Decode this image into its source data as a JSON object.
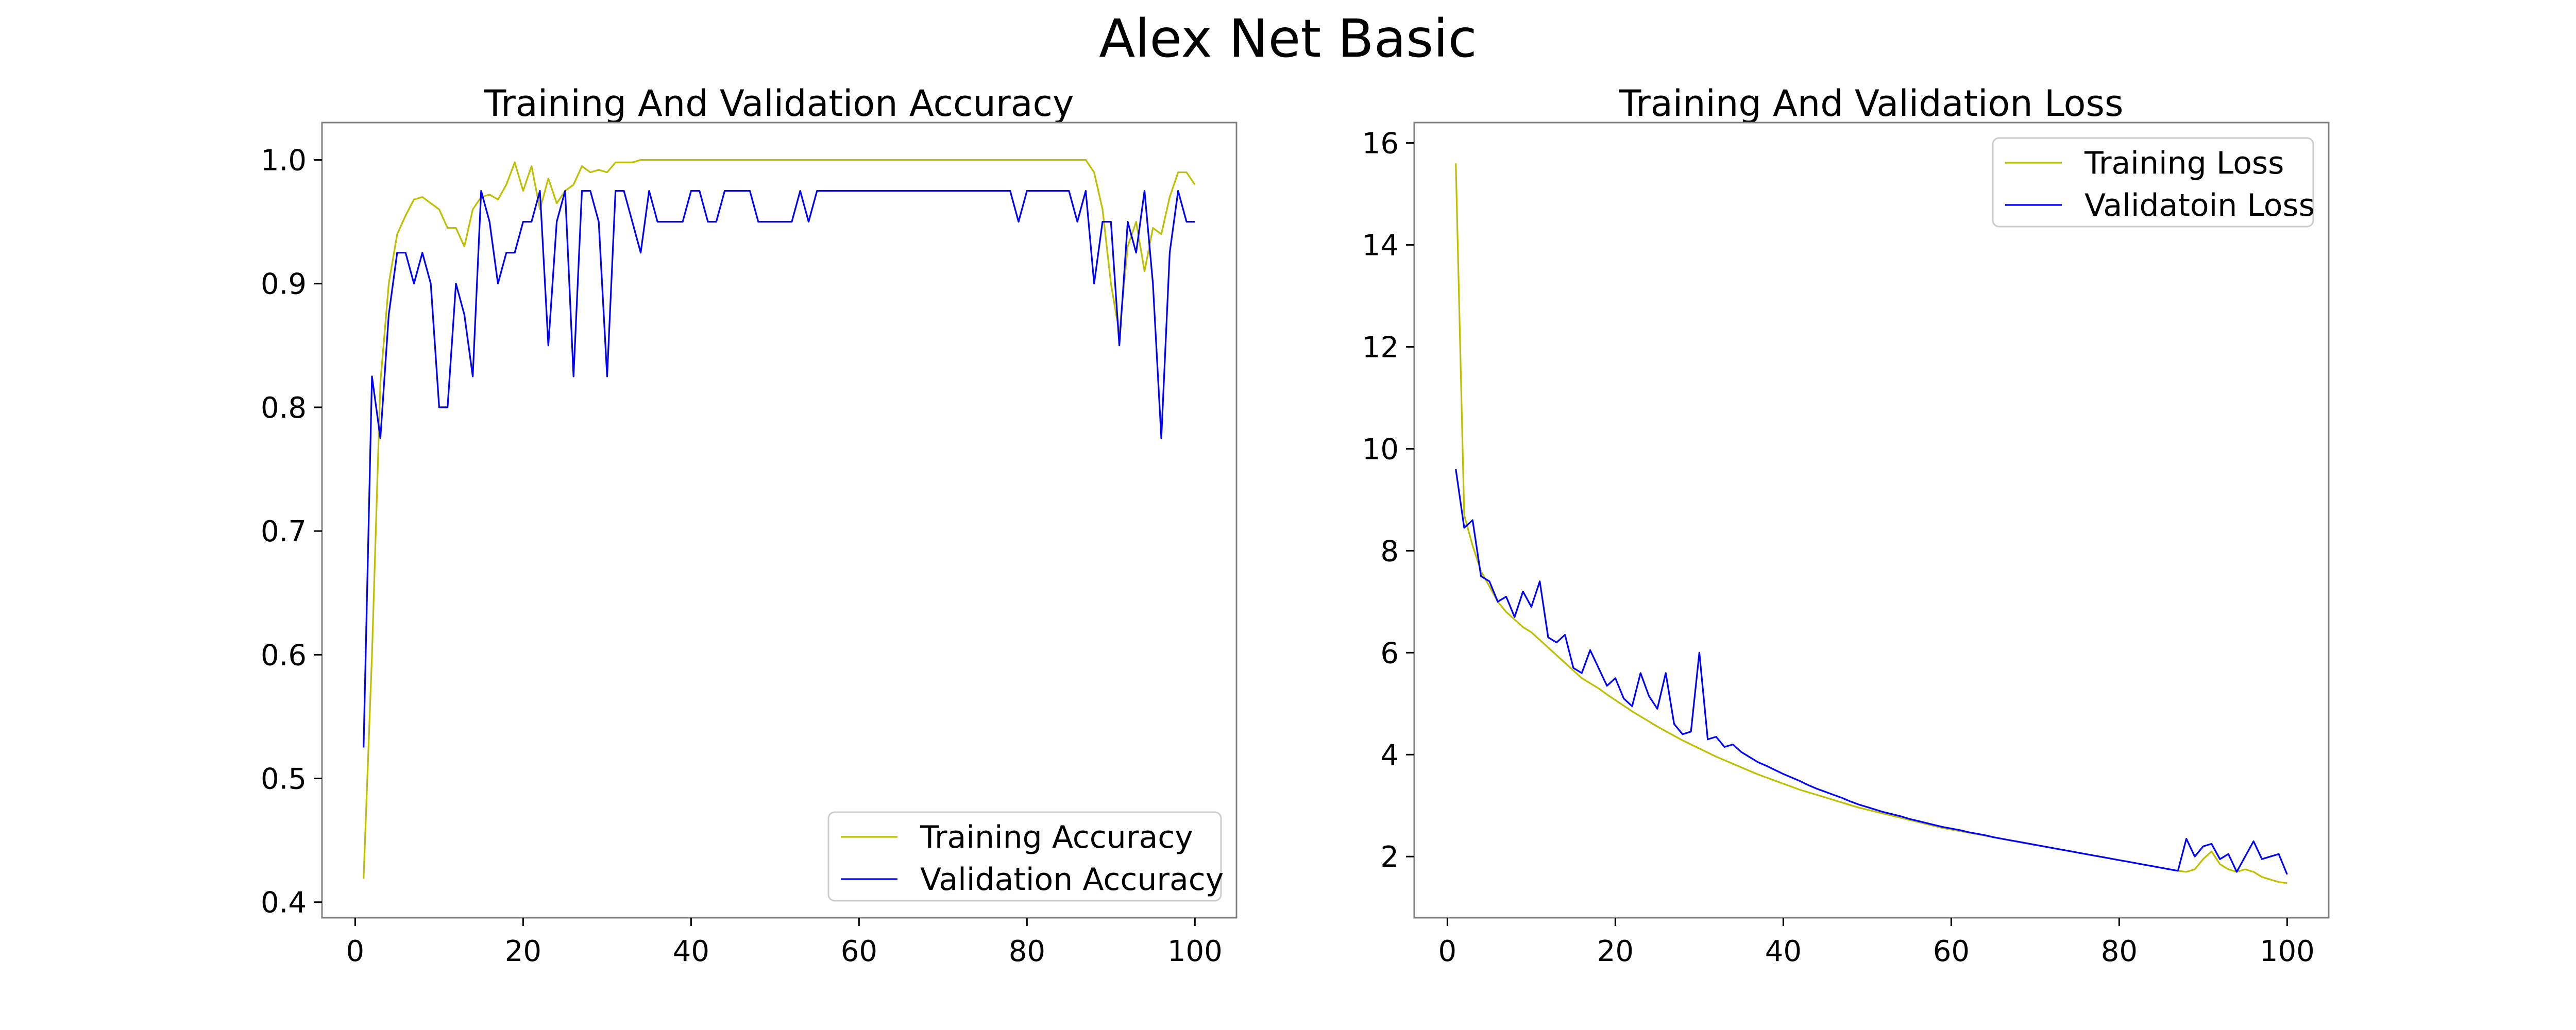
{
  "figure": {
    "suptitle": "Alex Net Basic"
  },
  "chart_data": [
    {
      "type": "line",
      "title": "Training And Validation Accuracy",
      "xlabel": "",
      "ylabel": "",
      "xlim": [
        -3.95,
        104.95
      ],
      "ylim": [
        0.3874,
        1.0302
      ],
      "xticks": [
        0,
        20,
        40,
        60,
        80,
        100
      ],
      "yticks": [
        0.4,
        0.5,
        0.6,
        0.7,
        0.8,
        0.9,
        1.0
      ],
      "ytick_labels": [
        "0.4",
        "0.5",
        "0.6",
        "0.7",
        "0.8",
        "0.9",
        "1.0"
      ],
      "legend_position": "lower-right",
      "grid": false,
      "series": [
        {
          "name": "Training Accuracy",
          "color": "#bfbf00",
          "x": [
            1,
            2,
            3,
            4,
            5,
            6,
            7,
            8,
            9,
            10,
            11,
            12,
            13,
            14,
            15,
            16,
            17,
            18,
            19,
            20,
            21,
            22,
            23,
            24,
            25,
            26,
            27,
            28,
            29,
            30,
            31,
            32,
            33,
            34,
            35,
            36,
            37,
            38,
            39,
            40,
            41,
            42,
            43,
            44,
            45,
            46,
            47,
            48,
            49,
            50,
            51,
            52,
            53,
            54,
            55,
            56,
            57,
            58,
            59,
            60,
            61,
            62,
            63,
            64,
            65,
            66,
            67,
            68,
            69,
            70,
            71,
            72,
            73,
            74,
            75,
            76,
            77,
            78,
            79,
            80,
            81,
            82,
            83,
            84,
            85,
            86,
            87,
            88,
            89,
            90,
            91,
            92,
            93,
            94,
            95,
            96,
            97,
            98,
            99,
            100
          ],
          "values": [
            0.419,
            0.6,
            0.82,
            0.9,
            0.94,
            0.955,
            0.968,
            0.97,
            0.965,
            0.96,
            0.945,
            0.945,
            0.93,
            0.96,
            0.97,
            0.972,
            0.968,
            0.98,
            0.998,
            0.975,
            0.995,
            0.96,
            0.985,
            0.965,
            0.975,
            0.98,
            0.995,
            0.99,
            0.992,
            0.99,
            0.998,
            0.998,
            0.998,
            1.0,
            1.0,
            1.0,
            1.0,
            1.0,
            1.0,
            1.0,
            1.0,
            1.0,
            1.0,
            1.0,
            1.0,
            1.0,
            1.0,
            1.0,
            1.0,
            1.0,
            1.0,
            1.0,
            1.0,
            1.0,
            1.0,
            1.0,
            1.0,
            1.0,
            1.0,
            1.0,
            1.0,
            1.0,
            1.0,
            1.0,
            1.0,
            1.0,
            1.0,
            1.0,
            1.0,
            1.0,
            1.0,
            1.0,
            1.0,
            1.0,
            1.0,
            1.0,
            1.0,
            1.0,
            1.0,
            1.0,
            1.0,
            1.0,
            1.0,
            1.0,
            1.0,
            1.0,
            1.0,
            0.99,
            0.96,
            0.9,
            0.86,
            0.93,
            0.95,
            0.91,
            0.945,
            0.94,
            0.97,
            0.99,
            0.99,
            0.98
          ]
        },
        {
          "name": "Validation Accuracy",
          "color": "#0000ff",
          "x": [
            1,
            2,
            3,
            4,
            5,
            6,
            7,
            8,
            9,
            10,
            11,
            12,
            13,
            14,
            15,
            16,
            17,
            18,
            19,
            20,
            21,
            22,
            23,
            24,
            25,
            26,
            27,
            28,
            29,
            30,
            31,
            32,
            33,
            34,
            35,
            36,
            37,
            38,
            39,
            40,
            41,
            42,
            43,
            44,
            45,
            46,
            47,
            48,
            49,
            50,
            51,
            52,
            53,
            54,
            55,
            56,
            57,
            58,
            59,
            60,
            61,
            62,
            63,
            64,
            65,
            66,
            67,
            68,
            69,
            70,
            71,
            72,
            73,
            74,
            75,
            76,
            77,
            78,
            79,
            80,
            81,
            82,
            83,
            84,
            85,
            86,
            87,
            88,
            89,
            90,
            91,
            92,
            93,
            94,
            95,
            96,
            97,
            98,
            99,
            100
          ],
          "values": [
            0.525,
            0.825,
            0.775,
            0.875,
            0.925,
            0.925,
            0.9,
            0.925,
            0.9,
            0.8,
            0.8,
            0.9,
            0.875,
            0.825,
            0.975,
            0.95,
            0.9,
            0.925,
            0.925,
            0.95,
            0.95,
            0.975,
            0.85,
            0.95,
            0.975,
            0.825,
            0.975,
            0.975,
            0.95,
            0.825,
            0.975,
            0.975,
            0.95,
            0.925,
            0.975,
            0.95,
            0.95,
            0.95,
            0.95,
            0.975,
            0.975,
            0.95,
            0.95,
            0.975,
            0.975,
            0.975,
            0.975,
            0.95,
            0.95,
            0.95,
            0.95,
            0.95,
            0.975,
            0.95,
            0.975,
            0.975,
            0.975,
            0.975,
            0.975,
            0.975,
            0.975,
            0.975,
            0.975,
            0.975,
            0.975,
            0.975,
            0.975,
            0.975,
            0.975,
            0.975,
            0.975,
            0.975,
            0.975,
            0.975,
            0.975,
            0.975,
            0.975,
            0.975,
            0.95,
            0.975,
            0.975,
            0.975,
            0.975,
            0.975,
            0.975,
            0.95,
            0.975,
            0.9,
            0.95,
            0.95,
            0.85,
            0.95,
            0.925,
            0.975,
            0.9,
            0.775,
            0.925,
            0.975,
            0.95,
            0.95
          ]
        }
      ]
    },
    {
      "type": "line",
      "title": "Training And Validation Loss",
      "xlabel": "",
      "ylabel": "",
      "xlim": [
        -3.95,
        104.95
      ],
      "ylim": [
        0.8,
        16.4
      ],
      "xticks": [
        0,
        20,
        40,
        60,
        80,
        100
      ],
      "yticks": [
        2,
        4,
        6,
        8,
        10,
        12,
        14,
        16
      ],
      "ytick_labels": [
        "2",
        "4",
        "6",
        "8",
        "10",
        "12",
        "14",
        "16"
      ],
      "legend_position": "upper-right",
      "grid": false,
      "series": [
        {
          "name": "Training Loss",
          "color": "#bfbf00",
          "x": [
            1,
            2,
            3,
            4,
            5,
            6,
            7,
            8,
            9,
            10,
            11,
            12,
            13,
            14,
            15,
            16,
            17,
            18,
            19,
            20,
            21,
            22,
            23,
            24,
            25,
            26,
            27,
            28,
            29,
            30,
            31,
            32,
            33,
            34,
            35,
            36,
            37,
            38,
            39,
            40,
            41,
            42,
            43,
            44,
            45,
            46,
            47,
            48,
            49,
            50,
            51,
            52,
            53,
            54,
            55,
            56,
            57,
            58,
            59,
            60,
            61,
            62,
            63,
            64,
            65,
            66,
            67,
            68,
            69,
            70,
            71,
            72,
            73,
            74,
            75,
            76,
            77,
            78,
            79,
            80,
            81,
            82,
            83,
            84,
            85,
            86,
            87,
            88,
            89,
            90,
            91,
            92,
            93,
            94,
            95,
            96,
            97,
            98,
            99,
            100
          ],
          "values": [
            15.6,
            8.7,
            8.1,
            7.6,
            7.3,
            7.0,
            6.8,
            6.65,
            6.5,
            6.4,
            6.25,
            6.1,
            5.95,
            5.8,
            5.65,
            5.5,
            5.4,
            5.3,
            5.18,
            5.07,
            4.96,
            4.85,
            4.75,
            4.65,
            4.55,
            4.46,
            4.37,
            4.28,
            4.2,
            4.12,
            4.04,
            3.96,
            3.89,
            3.82,
            3.75,
            3.68,
            3.61,
            3.55,
            3.49,
            3.43,
            3.37,
            3.31,
            3.26,
            3.21,
            3.16,
            3.11,
            3.06,
            3.01,
            2.96,
            2.92,
            2.88,
            2.84,
            2.8,
            2.76,
            2.72,
            2.68,
            2.64,
            2.6,
            2.56,
            2.53,
            2.5,
            2.47,
            2.44,
            2.41,
            2.38,
            2.35,
            2.32,
            2.29,
            2.26,
            2.23,
            2.2,
            2.17,
            2.14,
            2.11,
            2.08,
            2.05,
            2.02,
            1.99,
            1.96,
            1.93,
            1.9,
            1.87,
            1.84,
            1.81,
            1.78,
            1.75,
            1.72,
            1.7,
            1.75,
            1.95,
            2.1,
            1.85,
            1.75,
            1.7,
            1.75,
            1.7,
            1.6,
            1.55,
            1.5,
            1.48
          ]
        },
        {
          "name": "Validatoin Loss",
          "color": "#0000ff",
          "x": [
            1,
            2,
            3,
            4,
            5,
            6,
            7,
            8,
            9,
            10,
            11,
            12,
            13,
            14,
            15,
            16,
            17,
            18,
            19,
            20,
            21,
            22,
            23,
            24,
            25,
            26,
            27,
            28,
            29,
            30,
            31,
            32,
            33,
            34,
            35,
            36,
            37,
            38,
            39,
            40,
            41,
            42,
            43,
            44,
            45,
            46,
            47,
            48,
            49,
            50,
            51,
            52,
            53,
            54,
            55,
            56,
            57,
            58,
            59,
            60,
            61,
            62,
            63,
            64,
            65,
            66,
            67,
            68,
            69,
            70,
            71,
            72,
            73,
            74,
            75,
            76,
            77,
            78,
            79,
            80,
            81,
            82,
            83,
            84,
            85,
            86,
            87,
            88,
            89,
            90,
            91,
            92,
            93,
            94,
            95,
            96,
            97,
            98,
            99,
            100
          ],
          "values": [
            9.6,
            8.45,
            8.6,
            7.5,
            7.4,
            7.0,
            7.1,
            6.7,
            7.2,
            6.9,
            7.4,
            6.3,
            6.2,
            6.35,
            5.7,
            5.6,
            6.05,
            5.7,
            5.35,
            5.5,
            5.1,
            4.95,
            5.6,
            5.15,
            4.9,
            5.6,
            4.6,
            4.4,
            4.45,
            6.0,
            4.3,
            4.35,
            4.15,
            4.2,
            4.05,
            3.95,
            3.85,
            3.78,
            3.7,
            3.62,
            3.55,
            3.48,
            3.4,
            3.33,
            3.27,
            3.21,
            3.15,
            3.08,
            3.02,
            2.97,
            2.92,
            2.87,
            2.83,
            2.79,
            2.74,
            2.7,
            2.66,
            2.62,
            2.58,
            2.55,
            2.52,
            2.48,
            2.45,
            2.42,
            2.38,
            2.35,
            2.32,
            2.29,
            2.26,
            2.23,
            2.2,
            2.17,
            2.14,
            2.11,
            2.08,
            2.05,
            2.02,
            1.99,
            1.96,
            1.93,
            1.9,
            1.87,
            1.84,
            1.81,
            1.78,
            1.75,
            1.72,
            2.35,
            2.0,
            2.2,
            2.25,
            1.95,
            2.05,
            1.7,
            2.0,
            2.3,
            1.95,
            2.0,
            2.05,
            1.65
          ]
        }
      ]
    }
  ]
}
